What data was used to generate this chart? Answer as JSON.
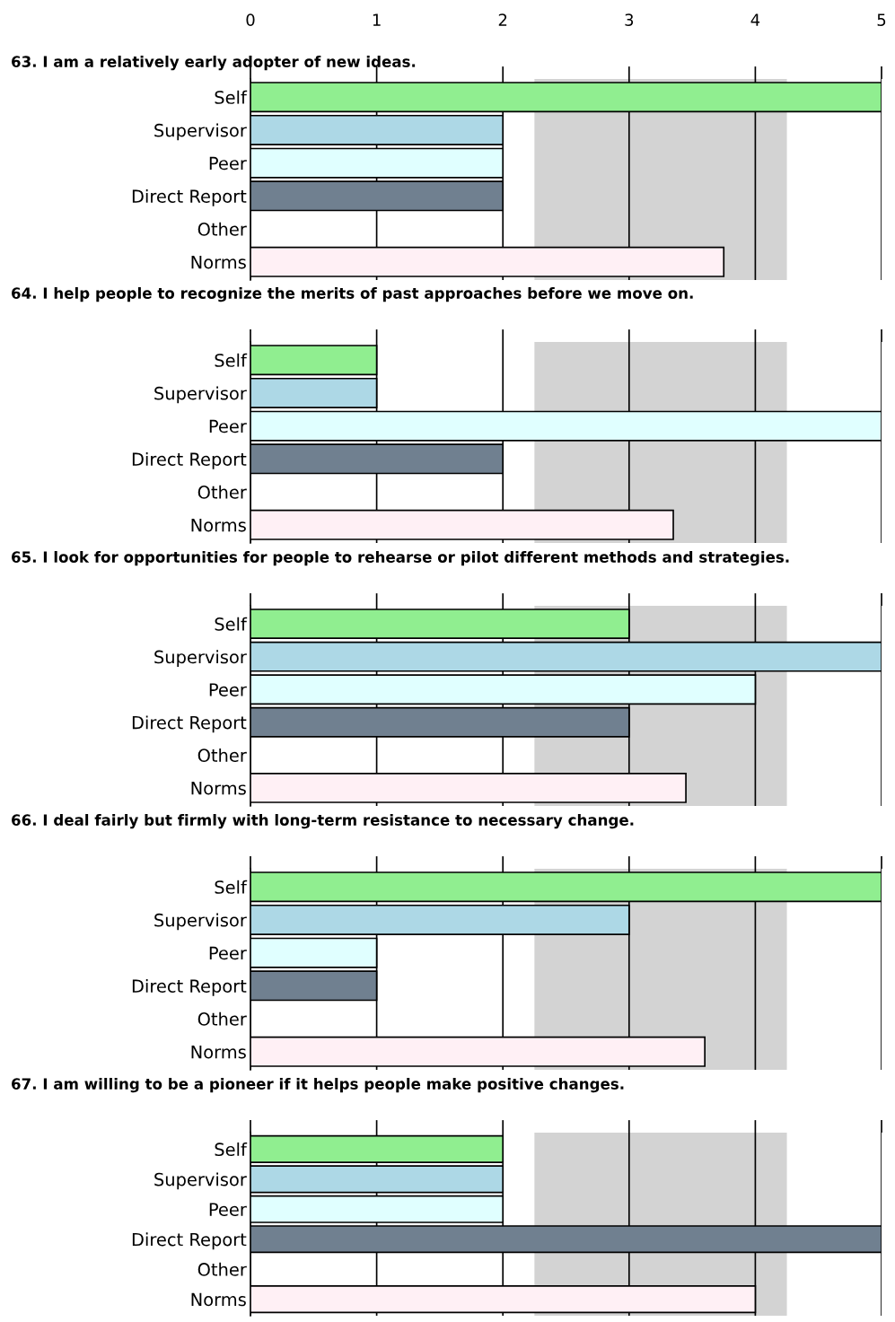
{
  "chart_data": [
    {
      "type": "bar",
      "orientation": "horizontal",
      "title": "63. I am a relatively early adopter of new ideas.",
      "categories": [
        "Self",
        "Supervisor",
        "Peer",
        "Direct Report",
        "Other",
        "Norms"
      ],
      "values": [
        5,
        2,
        2,
        2,
        null,
        3.75
      ],
      "colors": [
        "#90ee90",
        "#add8e6",
        "#e0ffff",
        "#708090",
        "#ffffff",
        "#fff0f5"
      ],
      "xlim": [
        0,
        5
      ],
      "xticks": [
        0,
        1,
        2,
        3,
        4,
        5
      ],
      "grid": "x",
      "bands": [
        {
          "axis": "x",
          "from": 2.25,
          "to": 4.25,
          "color": "#d3d3d3"
        }
      ]
    },
    {
      "type": "bar",
      "orientation": "horizontal",
      "title": "64. I help people to recognize the merits of past approaches before we move on.",
      "categories": [
        "Self",
        "Supervisor",
        "Peer",
        "Direct Report",
        "Other",
        "Norms"
      ],
      "values": [
        1,
        1,
        5,
        2,
        null,
        3.35
      ],
      "colors": [
        "#90ee90",
        "#add8e6",
        "#e0ffff",
        "#708090",
        "#ffffff",
        "#fff0f5"
      ],
      "xlim": [
        0,
        5
      ],
      "xticks": [
        0,
        1,
        2,
        3,
        4,
        5
      ],
      "tick_labels": "y",
      "grid": "x",
      "bands": [
        {
          "axis": "x",
          "from": 2.25,
          "to": 4.25,
          "color": "#d3d3d3"
        }
      ]
    },
    {
      "type": "bar",
      "orientation": "horizontal",
      "title": "65. I look for opportunities for people to rehearse or pilot different methods and strategies.",
      "categories": [
        "Self",
        "Supervisor",
        "Peer",
        "Direct Report",
        "Other",
        "Norms"
      ],
      "values": [
        3,
        5,
        4,
        3,
        null,
        3.45
      ],
      "colors": [
        "#90ee90",
        "#add8e6",
        "#e0ffff",
        "#708090",
        "#ffffff",
        "#fff0f5"
      ],
      "xlim": [
        0,
        5
      ],
      "xticks": [
        0,
        1,
        2,
        3,
        4,
        5
      ],
      "tick_labels": "y",
      "grid": "x",
      "bands": [
        {
          "axis": "x",
          "from": 2.25,
          "to": 4.25,
          "color": "#d3d3d3"
        }
      ]
    },
    {
      "type": "bar",
      "orientation": "horizontal",
      "title": "66. I deal fairly but firmly with long-term resistance to necessary change.",
      "categories": [
        "Self",
        "Supervisor",
        "Peer",
        "Direct Report",
        "Other",
        "Norms"
      ],
      "values": [
        5,
        3,
        1,
        1,
        null,
        3.6
      ],
      "colors": [
        "#90ee90",
        "#add8e6",
        "#e0ffff",
        "#708090",
        "#ffffff",
        "#fff0f5"
      ],
      "xlim": [
        0,
        5
      ],
      "xticks": [
        0,
        1,
        2,
        3,
        4,
        5
      ],
      "tick_labels": "y",
      "grid": "x",
      "bands": [
        {
          "axis": "x",
          "from": 2.25,
          "to": 4.25,
          "color": "#d3d3d3"
        }
      ]
    },
    {
      "type": "bar",
      "orientation": "horizontal",
      "title": "67. I am willing to be a pioneer if it helps people make positive changes.",
      "categories": [
        "Self",
        "Supervisor",
        "Peer",
        "Direct Report",
        "Other",
        "Norms"
      ],
      "values": [
        2,
        2,
        2,
        5,
        null,
        4
      ],
      "colors": [
        "#90ee90",
        "#add8e6",
        "#e0ffff",
        "#708090",
        "#ffffff",
        "#fff0f5"
      ],
      "xlim": [
        0,
        5
      ],
      "xticks": [
        0,
        1,
        2,
        3,
        4,
        5
      ],
      "tick_labels": "y",
      "grid": "x",
      "bands": [
        {
          "axis": "x",
          "from": 2.25,
          "to": 4.25,
          "color": "#d3d3d3"
        }
      ]
    }
  ]
}
